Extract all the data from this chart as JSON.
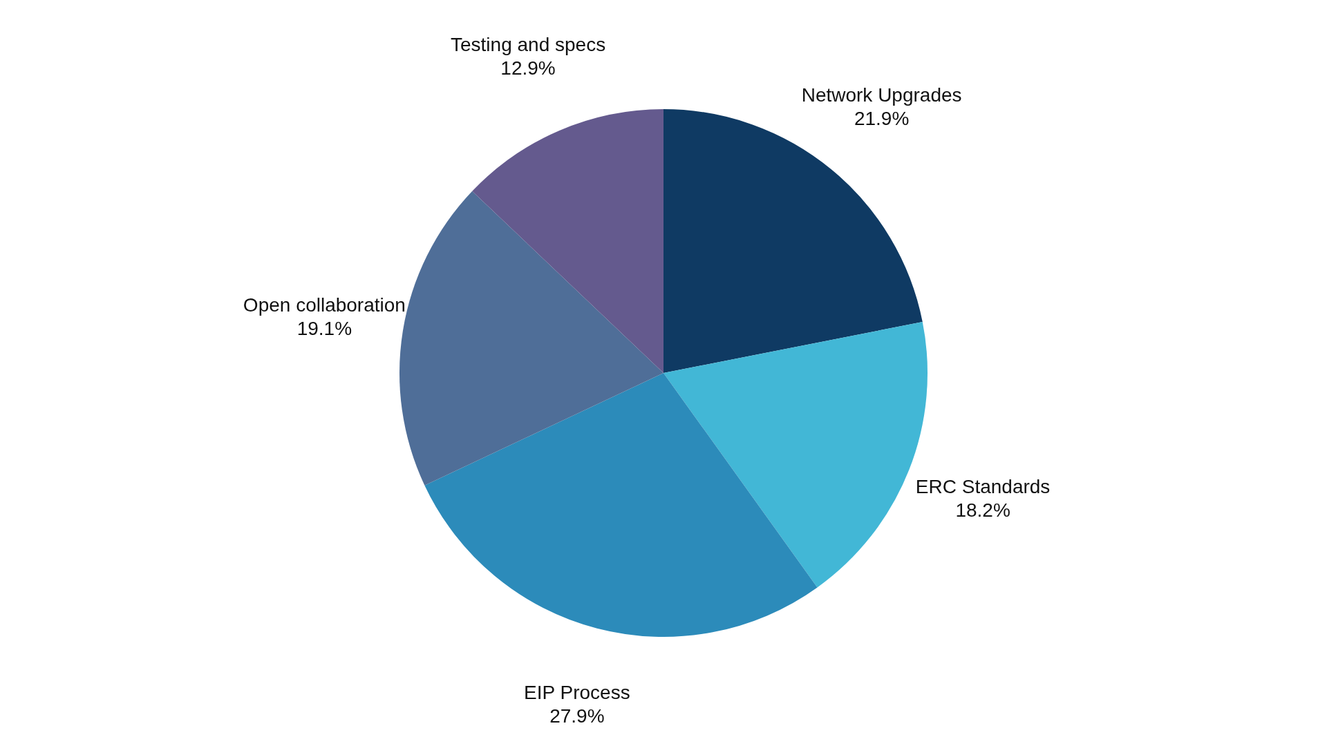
{
  "chart_data": {
    "type": "pie",
    "categories": [
      "Network Upgrades",
      "ERC Standards",
      "EIP Process",
      "Open collaboration",
      "Testing and specs"
    ],
    "values": [
      21.9,
      18.2,
      27.9,
      19.1,
      12.9
    ],
    "value_labels": [
      "21.9%",
      "18.2%",
      "27.9%",
      "19.1%",
      "12.9%"
    ],
    "colors": [
      "#0f3a63",
      "#42b7d6",
      "#2c8bba",
      "#4f6e98",
      "#645a8e"
    ],
    "legend": false
  }
}
